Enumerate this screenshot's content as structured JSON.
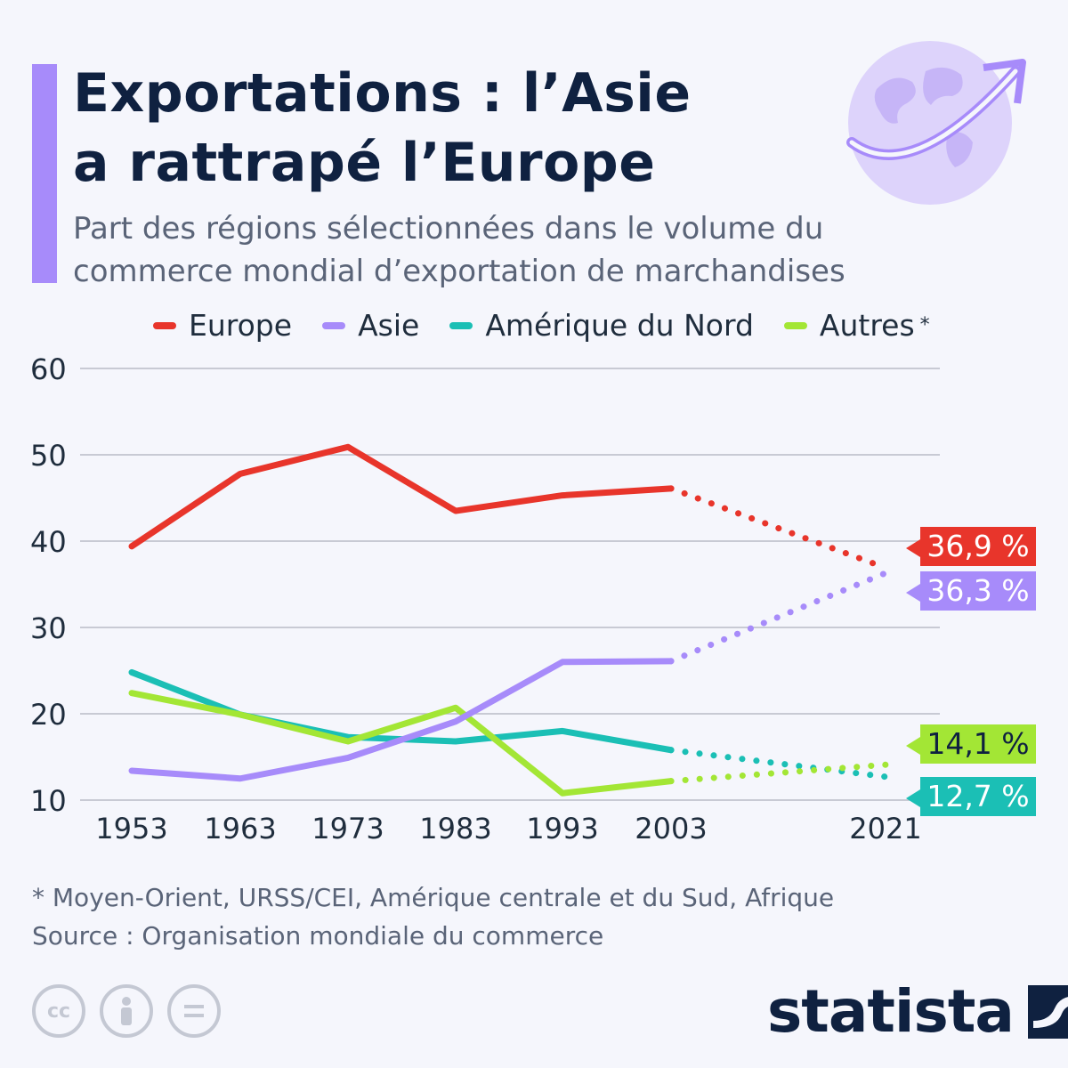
{
  "header": {
    "title_line1": "Exportations : l’Asie",
    "title_line2": "a rattrapé l’Europe",
    "subtitle_line1": "Part des régions sélectionnées dans le volume du",
    "subtitle_line2": "commerce mondial d’exportation de marchandises"
  },
  "colors": {
    "accent": "#a78bfa",
    "europe": "#e8352b",
    "asie": "#a78bfa",
    "amerique_du_nord": "#1bbfb5",
    "autres": "#a3e635",
    "text_dark": "#0f2140"
  },
  "chart_data": {
    "type": "line",
    "title": "Exportations : l’Asie a rattrapé l’Europe",
    "x": [
      1953,
      1963,
      1973,
      1983,
      1993,
      2003,
      2021
    ],
    "x_tick_labels": [
      "1953",
      "1963",
      "1973",
      "1983",
      "1993",
      "2003",
      "2021"
    ],
    "y_tick_labels": [
      "60",
      "50",
      "40",
      "30",
      "20",
      "10"
    ],
    "ylim": [
      10,
      60
    ],
    "yticks": [
      10,
      20,
      30,
      40,
      50,
      60
    ],
    "grid": true,
    "legend_placement": "top",
    "dotted_segment": "2003-2021",
    "series": [
      {
        "key": "europe",
        "name": "Europe",
        "values": [
          39.4,
          47.8,
          50.9,
          43.5,
          45.3,
          46.1,
          36.9
        ],
        "end_label": "36,9 %"
      },
      {
        "key": "asie",
        "name": "Asie",
        "values": [
          13.4,
          12.5,
          14.9,
          19.1,
          26.0,
          26.1,
          36.3
        ],
        "end_label": "36,3 %"
      },
      {
        "key": "amerique_du_nord",
        "name": "Amérique du Nord",
        "values": [
          24.8,
          19.9,
          17.3,
          16.8,
          18.0,
          15.8,
          12.7
        ],
        "end_label": "12,7 %"
      },
      {
        "key": "autres",
        "name": "Autres",
        "legend_suffix": "*",
        "values": [
          22.4,
          19.9,
          16.8,
          20.7,
          10.8,
          12.2,
          14.1
        ],
        "end_label": "14,1 %"
      }
    ]
  },
  "footer": {
    "footnote": "* Moyen-Orient, URSS/CEI, Amérique centrale et du Sud, Afrique",
    "source": "Source : Organisation mondiale du commerce",
    "cc_icons": [
      "cc-icon",
      "attribution-icon",
      "no-derivatives-icon"
    ],
    "brand": "statista"
  }
}
